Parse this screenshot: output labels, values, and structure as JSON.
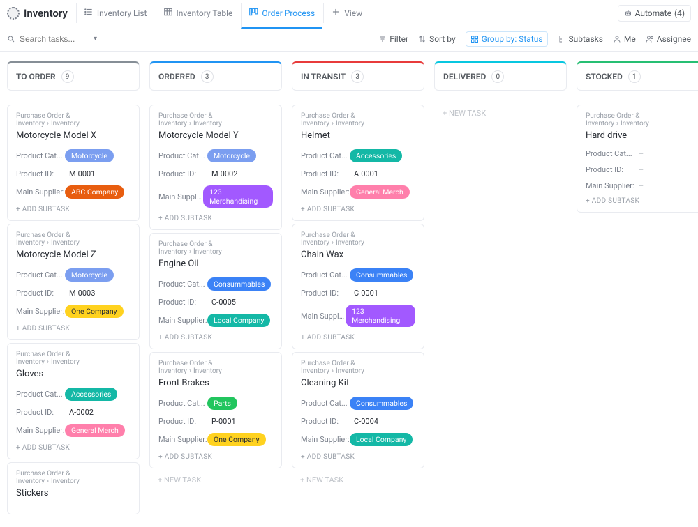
{
  "header": {
    "title": "Inventory",
    "views": [
      {
        "label": "Inventory List",
        "icon": "list"
      },
      {
        "label": "Inventory Table",
        "icon": "table"
      },
      {
        "label": "Order Process",
        "icon": "board",
        "active": true
      },
      {
        "label": "View",
        "icon": "plus"
      }
    ],
    "automate_label": "Automate",
    "automate_count": "(4)"
  },
  "toolbar": {
    "search_placeholder": "Search tasks...",
    "filter": "Filter",
    "sortby": "Sort by",
    "groupby": "Group by: Status",
    "subtasks": "Subtasks",
    "me": "Me",
    "assignee": "Assignee"
  },
  "labels": {
    "product_cat": "Product Cat...",
    "product_id": "Product ID:",
    "main_supplier": "Main Supplier:",
    "add_subtask": "+ ADD SUBTASK",
    "new_task": "+ NEW TASK",
    "crumb_parent": "Purchase Order & Inventory",
    "crumb_child": "Inventory"
  },
  "colors": {
    "col1": "#868e96",
    "col2": "#2094f3",
    "col3": "#e83b3b",
    "col4": "#08c7e0",
    "col5": "#26bf73",
    "tag_motorcycle": "#7b9ef0",
    "tag_abc": "#e85d0f",
    "tag_one": "#ffd21f",
    "tag_accessories": "#14b8a6",
    "tag_generalmerch": "#ff7fab",
    "tag_123merch": "#a259ff",
    "tag_consummables": "#3b82f6",
    "tag_local": "#14b8a6",
    "tag_parts": "#22c55e"
  },
  "columns": [
    {
      "title": "TO ORDER",
      "count": "9",
      "top": "col1",
      "cards": [
        {
          "title": "Motorcycle Model X",
          "cat": "Motorcycle",
          "cat_c": "tag_motorcycle",
          "pid": "M-0001",
          "sup": "ABC Company",
          "sup_c": "tag_abc"
        },
        {
          "title": "Motorcycle Model Z",
          "cat": "Motorcycle",
          "cat_c": "tag_motorcycle",
          "pid": "M-0003",
          "sup": "One Company",
          "sup_c": "tag_one",
          "sup_dark": true
        },
        {
          "title": "Gloves",
          "cat": "Accessories",
          "cat_c": "tag_accessories",
          "pid": "A-0002",
          "sup": "General Merch",
          "sup_c": "tag_generalmerch"
        },
        {
          "title": "Stickers",
          "partial": true
        }
      ],
      "newtask": false
    },
    {
      "title": "ORDERED",
      "count": "3",
      "top": "col2",
      "cards": [
        {
          "title": "Motorcycle Model Y",
          "cat": "Motorcycle",
          "cat_c": "tag_motorcycle",
          "pid": "M-0002",
          "sup": "123 Merchandising",
          "sup_c": "tag_123merch"
        },
        {
          "title": "Engine Oil",
          "cat": "Consummables",
          "cat_c": "tag_consummables",
          "pid": "C-0005",
          "sup": "Local Company",
          "sup_c": "tag_local"
        },
        {
          "title": "Front Brakes",
          "cat": "Parts",
          "cat_c": "tag_parts",
          "pid": "P-0001",
          "sup": "One Company",
          "sup_c": "tag_one",
          "sup_dark": true
        }
      ],
      "newtask": true
    },
    {
      "title": "IN TRANSIT",
      "count": "3",
      "top": "col3",
      "cards": [
        {
          "title": "Helmet",
          "cat": "Accessories",
          "cat_c": "tag_accessories",
          "pid": "A-0001",
          "sup": "General Merch",
          "sup_c": "tag_generalmerch"
        },
        {
          "title": "Chain Wax",
          "cat": "Consummables",
          "cat_c": "tag_consummables",
          "pid": "C-0001",
          "sup": "123 Merchandising",
          "sup_c": "tag_123merch"
        },
        {
          "title": "Cleaning Kit",
          "cat": "Consummables",
          "cat_c": "tag_consummables",
          "pid": "C-0004",
          "sup": "Local Company",
          "sup_c": "tag_local"
        }
      ],
      "newtask": true
    },
    {
      "title": "DELIVERED",
      "count": "0",
      "top": "col4",
      "cards": [],
      "newtask": true
    },
    {
      "title": "STOCKED",
      "count": "1",
      "top": "col5",
      "cards": [
        {
          "title": "Hard drive",
          "empty": true
        }
      ],
      "newtask": false
    }
  ]
}
